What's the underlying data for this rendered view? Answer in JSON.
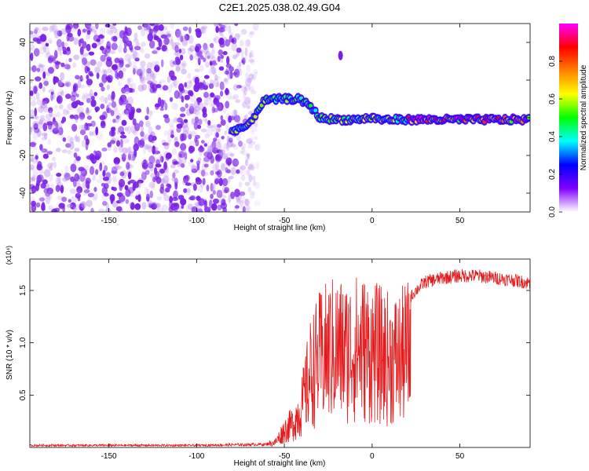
{
  "title": "C2E1.2025.038.02.49.G04",
  "chart_data": [
    {
      "type": "heatmap",
      "xlabel": "Height of straight line (km)",
      "ylabel": "Frequency (Hz)",
      "xlim": [
        -195,
        90
      ],
      "ylim": [
        -50,
        50
      ],
      "xticks": [
        -150,
        -100,
        -50,
        0,
        50
      ],
      "yticks": [
        -40,
        -20,
        0,
        20,
        40
      ],
      "colorbar": {
        "label": "Normalized spectral amplitude",
        "range": [
          0,
          1
        ],
        "ticks": [
          0.0,
          0.2,
          0.4,
          0.6,
          0.8
        ],
        "colormap": [
          "#ffffff",
          "#8000ff",
          "#0000ff",
          "#00ffff",
          "#00ff00",
          "#ffff00",
          "#ff8000",
          "#ff0000",
          "#ff00ff"
        ]
      },
      "features": {
        "noise_region_x": [
          -195,
          -63
        ],
        "signal_track": [
          [
            -80,
            -7
          ],
          [
            -70,
            -4
          ],
          [
            -62,
            9
          ],
          [
            -52,
            10
          ],
          [
            -42,
            10
          ],
          [
            -35,
            6
          ],
          [
            -30,
            0
          ],
          [
            -20,
            -1
          ],
          [
            -10,
            -1
          ],
          [
            0,
            0
          ],
          [
            5,
            -1
          ],
          [
            20,
            -1
          ],
          [
            40,
            -1
          ],
          [
            60,
            -1
          ],
          [
            75,
            -1
          ],
          [
            90,
            -1
          ]
        ],
        "isolated_blob": {
          "x": -18,
          "y": 33
        }
      }
    },
    {
      "type": "line",
      "xlabel": "Height of straight line (km)",
      "ylabel": "SNR (10 * v/v)",
      "y_multiplier": "(x10⁴)",
      "xlim": [
        -195,
        90
      ],
      "ylim": [
        0,
        1.8
      ],
      "xticks": [
        -150,
        -100,
        -50,
        0,
        50
      ],
      "yticks": [
        0.5,
        1.0,
        1.5
      ],
      "color": "#e41a1c",
      "envelope": [
        [
          -195,
          0.02
        ],
        [
          -100,
          0.02
        ],
        [
          -60,
          0.03
        ],
        [
          -55,
          0.08
        ],
        [
          -50,
          0.25
        ],
        [
          -45,
          0.35
        ],
        [
          -40,
          0.6
        ],
        [
          -35,
          1.1
        ],
        [
          -30,
          1.3
        ],
        [
          -25,
          1.4
        ],
        [
          -20,
          1.45
        ],
        [
          -15,
          1.4
        ],
        [
          -10,
          1.45
        ],
        [
          -5,
          1.45
        ],
        [
          0,
          1.4
        ],
        [
          5,
          1.35
        ],
        [
          10,
          1.3
        ],
        [
          15,
          1.3
        ],
        [
          20,
          1.4
        ],
        [
          25,
          1.5
        ],
        [
          30,
          1.58
        ],
        [
          40,
          1.62
        ],
        [
          50,
          1.64
        ],
        [
          60,
          1.64
        ],
        [
          70,
          1.62
        ],
        [
          80,
          1.6
        ],
        [
          90,
          1.57
        ]
      ]
    }
  ]
}
